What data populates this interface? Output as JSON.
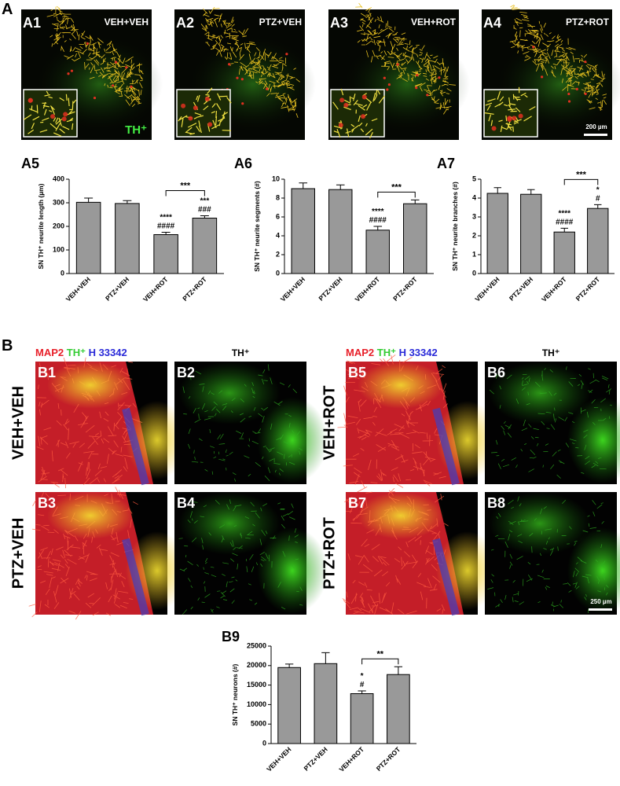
{
  "figure": {
    "section_a": "A",
    "section_b": "B",
    "a_panels": [
      {
        "label": "A1",
        "condition": "VEH+VEH",
        "marker": "TH⁺"
      },
      {
        "label": "A2",
        "condition": "PTZ+VEH"
      },
      {
        "label": "A3",
        "condition": "VEH+ROT"
      },
      {
        "label": "A4",
        "condition": "PTZ+ROT",
        "scale_bar": "200 µm"
      }
    ],
    "b_stain": [
      {
        "text": "MAP2",
        "color": "#e8202a"
      },
      {
        "text": "TH⁺",
        "color": "#33cc33"
      },
      {
        "text": "H 33342",
        "color": "#2a2ad8"
      }
    ],
    "b_th_header": "TH⁺",
    "b_rows": [
      "VEH+VEH",
      "PTZ+VEH",
      "VEH+ROT",
      "PTZ+ROT"
    ],
    "b_panels": [
      "B1",
      "B2",
      "B3",
      "B4",
      "B5",
      "B6",
      "B7",
      "B8"
    ],
    "b_scale_bar": "250 µm"
  },
  "chart_data": [
    {
      "type": "bar",
      "panel": "A5",
      "y_label": "SN TH⁺ neurite length (µm)",
      "categories": [
        "VEH+VEH",
        "PTZ+VEH",
        "VEH+ROT",
        "PTZ+ROT"
      ],
      "values": [
        302,
        297,
        165,
        235
      ],
      "errors": [
        18,
        12,
        10,
        10
      ],
      "color": "#999999",
      "ylim": [
        0,
        400
      ],
      "yticks": [
        0,
        100,
        200,
        300,
        400
      ],
      "annotations": [
        {
          "category": "VEH+ROT",
          "lines": [
            "****",
            "####"
          ]
        },
        {
          "category": "PTZ+ROT",
          "lines": [
            "***",
            "###"
          ]
        }
      ],
      "bracket": {
        "from": "VEH+ROT",
        "to": "PTZ+ROT",
        "label": "***"
      }
    },
    {
      "type": "bar",
      "panel": "A6",
      "y_label": "SN TH⁺ neurite segments (#)",
      "categories": [
        "VEH+VEH",
        "PTZ+VEH",
        "VEH+ROT",
        "PTZ+ROT"
      ],
      "values": [
        9.0,
        8.9,
        4.6,
        7.4
      ],
      "errors": [
        0.6,
        0.5,
        0.4,
        0.4
      ],
      "color": "#999999",
      "ylim": [
        0,
        10
      ],
      "yticks": [
        0,
        2,
        4,
        6,
        8,
        10
      ],
      "annotations": [
        {
          "category": "VEH+ROT",
          "lines": [
            "****",
            "####"
          ]
        }
      ],
      "bracket": {
        "from": "VEH+ROT",
        "to": "PTZ+ROT",
        "label": "***"
      }
    },
    {
      "type": "bar",
      "panel": "A7",
      "y_label": "SN TH⁺ neurite branches (#)",
      "categories": [
        "VEH+VEH",
        "PTZ+VEH",
        "VEH+ROT",
        "PTZ+ROT"
      ],
      "values": [
        4.25,
        4.2,
        2.2,
        3.45
      ],
      "errors": [
        0.3,
        0.25,
        0.2,
        0.2
      ],
      "color": "#999999",
      "ylim": [
        0,
        5
      ],
      "yticks": [
        0,
        1,
        2,
        3,
        4,
        5
      ],
      "annotations": [
        {
          "category": "VEH+ROT",
          "lines": [
            "****",
            "####"
          ]
        },
        {
          "category": "PTZ+ROT",
          "lines": [
            "*",
            "#"
          ]
        }
      ],
      "bracket": {
        "from": "VEH+ROT",
        "to": "PTZ+ROT",
        "label": "***"
      }
    },
    {
      "type": "bar",
      "panel": "B9",
      "y_label": "SN TH⁺ neurons (#)",
      "categories": [
        "VEH+VEH",
        "PTZ+VEH",
        "VEH+ROT",
        "PTZ+ROT"
      ],
      "values": [
        19500,
        20500,
        12800,
        17700
      ],
      "errors": [
        900,
        2800,
        700,
        2000
      ],
      "color": "#999999",
      "ylim": [
        0,
        25000
      ],
      "yticks": [
        0,
        5000,
        10000,
        15000,
        20000,
        25000
      ],
      "annotations": [
        {
          "category": "VEH+ROT",
          "lines": [
            "*",
            "#"
          ]
        }
      ],
      "bracket": {
        "from": "VEH+ROT",
        "to": "PTZ+ROT",
        "label": "**"
      }
    }
  ]
}
